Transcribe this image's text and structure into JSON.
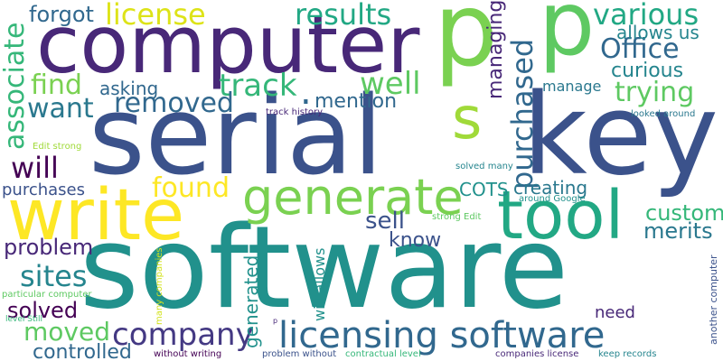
{
  "words": [
    {
      "id": "software",
      "text": "software",
      "color": "#21918c"
    },
    {
      "id": "serial",
      "text": "serial",
      "color": "#3b528b"
    },
    {
      "id": "key",
      "text": "key",
      "color": "#3b528b"
    },
    {
      "id": "computer",
      "text": "computer",
      "color": "#482878"
    },
    {
      "id": "write",
      "text": "write",
      "color": "#fde725"
    },
    {
      "id": "p1",
      "text": "p",
      "color": "#7ad151"
    },
    {
      "id": "p2",
      "text": "p",
      "color": "#5ec962"
    },
    {
      "id": "tool",
      "text": "tool",
      "color": "#22a884"
    },
    {
      "id": "generate",
      "text": "generate",
      "color": "#7ad151"
    },
    {
      "id": "licensing-software",
      "text": "licensing software",
      "color": "#31688e"
    },
    {
      "id": "s",
      "text": "s",
      "color": "#a0da39"
    },
    {
      "id": "purchased",
      "text": "purchased",
      "color": "#31688e"
    },
    {
      "id": "company",
      "text": "company",
      "color": "#443983"
    },
    {
      "id": "license",
      "text": "license",
      "color": "#dde318"
    },
    {
      "id": "results",
      "text": "results",
      "color": "#22a884"
    },
    {
      "id": "various",
      "text": "various",
      "color": "#22a884"
    },
    {
      "id": "office",
      "text": "Office",
      "color": "#31688e"
    },
    {
      "id": "track",
      "text": "track",
      "color": "#35b779"
    },
    {
      "id": "removed",
      "text": "removed",
      "color": "#31688e"
    },
    {
      "id": "trying",
      "text": "trying",
      "color": "#5ec962"
    },
    {
      "id": "found",
      "text": "found",
      "color": "#fde725"
    },
    {
      "id": "want",
      "text": "want",
      "color": "#2a788e"
    },
    {
      "id": "find",
      "text": "find",
      "color": "#7ad151"
    },
    {
      "id": "well",
      "text": "well",
      "color": "#5ec962"
    },
    {
      "id": "moved",
      "text": "moved",
      "color": "#5ec962"
    },
    {
      "id": "sites",
      "text": "sites",
      "color": "#25858e"
    },
    {
      "id": "associate",
      "text": "associate",
      "color": "#35b779"
    },
    {
      "id": "will",
      "text": "will",
      "color": "#440154"
    },
    {
      "id": "forgot",
      "text": "forgot",
      "color": "#31688e"
    },
    {
      "id": "custom",
      "text": "custom",
      "color": "#35b779"
    },
    {
      "id": "merits",
      "text": "merits",
      "color": "#2a788e"
    },
    {
      "id": "sell",
      "text": "sell",
      "color": "#3b528b"
    },
    {
      "id": "problem",
      "text": "problem",
      "color": "#482878"
    },
    {
      "id": "solved",
      "text": "solved",
      "color": "#440154"
    },
    {
      "id": "controlled",
      "text": "controlled",
      "color": "#31688e"
    },
    {
      "id": "know",
      "text": "know",
      "color": "#3b528b"
    },
    {
      "id": "mention",
      "text": "mention",
      "color": "#31688e"
    },
    {
      "id": "managing",
      "text": "managing",
      "color": "#482878"
    },
    {
      "id": "curious",
      "text": "curious",
      "color": "#25858e"
    },
    {
      "id": "allows-us",
      "text": "allows us",
      "color": "#25858e"
    },
    {
      "id": "asking",
      "text": "asking",
      "color": "#31688e"
    },
    {
      "id": "creating",
      "text": "creating",
      "color": "#2a788e"
    },
    {
      "id": "cots",
      "text": "COTS",
      "color": "#21918c"
    },
    {
      "id": "purchases",
      "text": "purchases",
      "color": "#3b528b"
    },
    {
      "id": "need",
      "text": "need",
      "color": "#482878"
    },
    {
      "id": "generated",
      "text": "generated",
      "color": "#21918c"
    },
    {
      "id": "will-allows",
      "text": "will allows",
      "color": "#21918c"
    },
    {
      "id": "manage",
      "text": "manage",
      "color": "#2a788e"
    },
    {
      "id": "track-history",
      "text": "track history",
      "color": "#482878"
    },
    {
      "id": "looked-around",
      "text": "looked around",
      "color": "#2a788e"
    },
    {
      "id": "solved-many",
      "text": "solved many",
      "color": "#25858e"
    },
    {
      "id": "around-google",
      "text": "around Google",
      "color": "#21918c"
    },
    {
      "id": "strong-edit",
      "text": "strong Edit",
      "color": "#5ec962"
    },
    {
      "id": "edit-strong",
      "text": "Edit strong",
      "color": "#a0da39"
    },
    {
      "id": "particular-computer",
      "text": "particular computer",
      "color": "#5ec962"
    },
    {
      "id": "level-still",
      "text": "level Still",
      "color": "#35b779"
    },
    {
      "id": "many-companies",
      "text": "many companies",
      "color": "#d2e21b"
    },
    {
      "id": "without-writing",
      "text": "without writing",
      "color": "#440154"
    },
    {
      "id": "problem-without",
      "text": "problem without",
      "color": "#3b528b"
    },
    {
      "id": "contractual-level",
      "text": "contractual level",
      "color": "#35b779"
    },
    {
      "id": "companies-license",
      "text": "companies license",
      "color": "#482878"
    },
    {
      "id": "keep-records",
      "text": "keep records",
      "color": "#25858e"
    },
    {
      "id": "another-computer",
      "text": "another computer",
      "color": "#3b528b"
    },
    {
      "id": "p-small",
      "text": "p",
      "color": "#482878"
    },
    {
      "id": "dot",
      "text": ".",
      "color": "#31688e"
    }
  ]
}
